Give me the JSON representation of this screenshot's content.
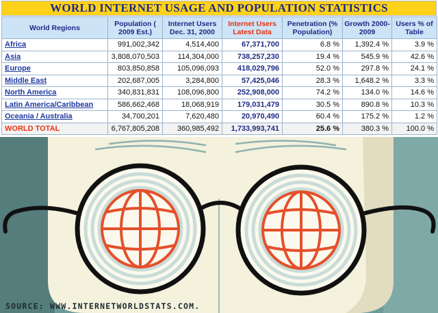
{
  "title": "WORLD INTERNET USAGE AND POPULATION STATISTICS",
  "columns": [
    "World Regions",
    "Population ( 2009 Est.)",
    "Internet Users Dec. 31, 2000",
    "Internet Users Latest Data",
    "Penetration (% Population)",
    "Growth 2000-2009",
    "Users % of Table"
  ],
  "rows": [
    {
      "region": "Africa",
      "population": "991,002,342",
      "users2000": "4,514,400",
      "latest": "67,371,700",
      "penetration": "6.8 %",
      "growth": "1,392.4 %",
      "share": "3.9 %"
    },
    {
      "region": "Asia",
      "population": "3,808,070,503",
      "users2000": "114,304,000",
      "latest": "738,257,230",
      "penetration": "19.4 %",
      "growth": "545.9 %",
      "share": "42.6 %"
    },
    {
      "region": "Europe",
      "population": "803,850,858",
      "users2000": "105,096,093",
      "latest": "418,029,796",
      "penetration": "52.0 %",
      "growth": "297.8 %",
      "share": "24.1 %"
    },
    {
      "region": "Middle East",
      "population": "202,687,005",
      "users2000": "3,284,800",
      "latest": "57,425,046",
      "penetration": "28.3 %",
      "growth": "1,648.2 %",
      "share": "3.3 %"
    },
    {
      "region": "North America",
      "population": "340,831,831",
      "users2000": "108,096,800",
      "latest": "252,908,000",
      "penetration": "74.2 %",
      "growth": "134.0 %",
      "share": "14.6 %"
    },
    {
      "region": "Latin America/Caribbean",
      "population": "586,662,468",
      "users2000": "18,068,919",
      "latest": "179,031,479",
      "penetration": "30.5 %",
      "growth": "890.8 %",
      "share": "10.3 %"
    },
    {
      "region": "Oceania / Australia",
      "population": "34,700,201",
      "users2000": "7,620,480",
      "latest": "20,970,490",
      "penetration": "60.4 %",
      "growth": "175.2 %",
      "share": "1.2 %"
    }
  ],
  "total": {
    "region": "WORLD TOTAL",
    "population": "6,767,805,208",
    "users2000": "360,985,492",
    "latest": "1,733,993,741",
    "penetration": "25.6 %",
    "growth": "380.3 %",
    "share": "100.0 %"
  },
  "source": "SOURCE: WWW.INTERNETWORLDSTATS.COM.",
  "colors": {
    "title_bg": "#ffd21a",
    "title_text": "#1e2a86",
    "header_bg": "#cde3f6",
    "accent_red": "#e63312",
    "background_teal": "#6d9a99",
    "face": "#f4f1dd",
    "frame": "#111111",
    "globe_lines": "#e5502b"
  },
  "icons": [
    "globe-icon-left",
    "globe-icon-right",
    "eyeglasses-icon"
  ]
}
